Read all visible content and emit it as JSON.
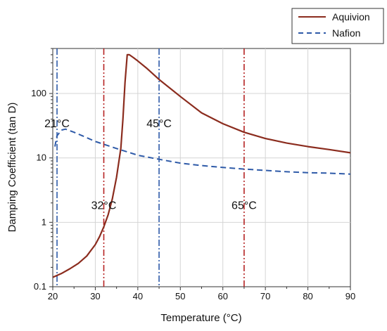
{
  "chart_data": {
    "type": "line",
    "title": "",
    "xlabel": "Temperature (°C)",
    "ylabel": "Damping Coefficient (tan D)",
    "xlim": [
      20,
      90
    ],
    "ylim": [
      0.1,
      500
    ],
    "yscale": "log",
    "grid": true,
    "legend_position": "top-right (outside plot)",
    "x_ticks": [
      20,
      30,
      40,
      50,
      60,
      70,
      80,
      90
    ],
    "x_tick_labels": [
      "20",
      "30",
      "40",
      "50",
      "60",
      "70",
      "80",
      "90"
    ],
    "y_ticks": [
      0.1,
      1,
      10,
      100
    ],
    "y_tick_labels": [
      "0.1",
      "1",
      "10",
      "100"
    ],
    "series": [
      {
        "name": "Aquivion",
        "color": "#8b2c1e",
        "style": "solid",
        "x": [
          20,
          22,
          24,
          26,
          28,
          30,
          31,
          32,
          33,
          34,
          35,
          36,
          36.5,
          37,
          37.5,
          38,
          39,
          40,
          42,
          45,
          50,
          55,
          60,
          65,
          70,
          75,
          80,
          85,
          90
        ],
        "y": [
          0.14,
          0.16,
          0.19,
          0.23,
          0.3,
          0.45,
          0.6,
          0.85,
          1.3,
          2.3,
          5,
          14,
          40,
          150,
          400,
          400,
          360,
          320,
          250,
          165,
          90,
          50,
          34,
          25,
          20,
          17,
          15,
          13.5,
          12
        ]
      },
      {
        "name": "Nafion",
        "color": "#2e5aa8",
        "style": "dashed",
        "x": [
          20.5,
          21,
          22,
          23,
          25,
          27,
          30,
          33,
          35,
          40,
          45,
          50,
          55,
          60,
          65,
          70,
          75,
          80,
          85,
          90
        ],
        "y": [
          15,
          22,
          27,
          28,
          25,
          22,
          18,
          15.5,
          14,
          11,
          9.5,
          8.3,
          7.6,
          7.1,
          6.7,
          6.4,
          6.1,
          5.9,
          5.8,
          5.6
        ]
      }
    ],
    "reference_lines": [
      {
        "x": 21,
        "label": "21°C",
        "color": "#2e5aa8",
        "style": "dash-dot"
      },
      {
        "x": 32,
        "label": "32°C",
        "color": "#b52222",
        "style": "dash-dot-dot"
      },
      {
        "x": 45,
        "label": "45°C",
        "color": "#2e5aa8",
        "style": "dash-dot"
      },
      {
        "x": 65,
        "label": "65°C",
        "color": "#b52222",
        "style": "dash-dot-dot"
      }
    ],
    "annotations": [
      {
        "text": "21°C",
        "at_line": 21,
        "level": 30
      },
      {
        "text": "45°C",
        "at_line": 45,
        "level": 30
      },
      {
        "text": "32°C",
        "at_line": 32,
        "level": 1.6
      },
      {
        "text": "65°C",
        "at_line": 65,
        "level": 1.6
      }
    ]
  }
}
